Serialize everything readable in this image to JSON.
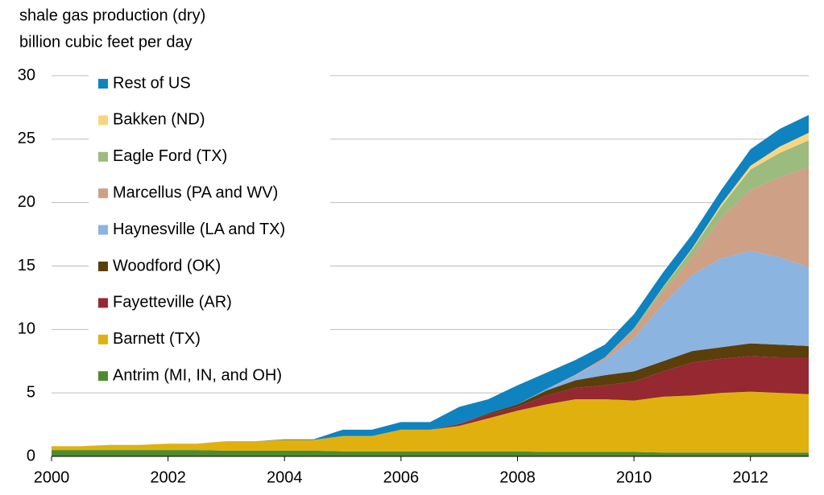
{
  "chart_data": {
    "type": "stacked-area",
    "title": "shale gas production (dry)",
    "subtitle": "billion cubic feet per day",
    "x": [
      2000,
      2000.5,
      2001,
      2001.5,
      2002,
      2002.5,
      2003,
      2003.5,
      2004,
      2004.5,
      2005,
      2005.5,
      2006,
      2006.5,
      2007,
      2007.5,
      2008,
      2008.5,
      2009,
      2009.5,
      2010,
      2010.5,
      2011,
      2011.5,
      2012,
      2012.5,
      2013
    ],
    "xlim": [
      2000,
      2013
    ],
    "xticks": [
      2000,
      2002,
      2004,
      2006,
      2008,
      2010,
      2012
    ],
    "ylim": [
      0,
      30
    ],
    "yticks": [
      0,
      5,
      10,
      15,
      20,
      25,
      30
    ],
    "grid": true,
    "legend": "upper left",
    "series": [
      {
        "name": "Antrim (MI, IN, and OH)",
        "color": "#4e8b2e",
        "values": [
          0.5,
          0.5,
          0.5,
          0.5,
          0.5,
          0.5,
          0.45,
          0.45,
          0.45,
          0.45,
          0.4,
          0.4,
          0.4,
          0.4,
          0.4,
          0.4,
          0.4,
          0.35,
          0.35,
          0.35,
          0.35,
          0.3,
          0.3,
          0.3,
          0.3,
          0.3,
          0.3
        ]
      },
      {
        "name": "Barnett (TX)",
        "color": "#e0b10e",
        "values": [
          0.3,
          0.3,
          0.4,
          0.4,
          0.5,
          0.5,
          0.75,
          0.75,
          0.85,
          0.85,
          1.2,
          1.2,
          1.7,
          1.7,
          2.0,
          2.6,
          3.2,
          3.75,
          4.15,
          4.15,
          4.05,
          4.4,
          4.5,
          4.7,
          4.8,
          4.7,
          4.6
        ]
      },
      {
        "name": "Fayetteville (AR)",
        "color": "#952831",
        "values": [
          0,
          0,
          0,
          0,
          0,
          0,
          0,
          0,
          0,
          0,
          0,
          0,
          0,
          0,
          0.15,
          0.3,
          0.3,
          0.7,
          0.9,
          1.1,
          1.5,
          2.0,
          2.6,
          2.7,
          2.8,
          2.8,
          2.9
        ]
      },
      {
        "name": "Woodford (OK)",
        "color": "#5a3f0a",
        "values": [
          0,
          0,
          0,
          0,
          0,
          0,
          0,
          0,
          0,
          0,
          0,
          0,
          0,
          0,
          0,
          0.1,
          0.2,
          0.4,
          0.6,
          0.8,
          0.8,
          0.8,
          0.9,
          0.9,
          1.0,
          1.0,
          0.9
        ]
      },
      {
        "name": "Haynesville (LA and TX)",
        "color": "#8cb4e0",
        "values": [
          0,
          0,
          0,
          0,
          0,
          0,
          0,
          0,
          0,
          0,
          0,
          0,
          0,
          0,
          0,
          0,
          0,
          0.1,
          0.4,
          1.2,
          2.6,
          4.5,
          6.0,
          7.0,
          7.3,
          6.9,
          6.2
        ]
      },
      {
        "name": "Marcellus (PA and WV)",
        "color": "#cea085",
        "values": [
          0,
          0,
          0,
          0,
          0,
          0,
          0,
          0,
          0,
          0,
          0,
          0,
          0,
          0,
          0,
          0,
          0,
          0,
          0.05,
          0.2,
          0.7,
          1.0,
          1.4,
          3.2,
          4.8,
          6.3,
          7.9
        ]
      },
      {
        "name": "Eagle Ford (TX)",
        "color": "#9bbb7f",
        "values": [
          0,
          0,
          0,
          0,
          0,
          0,
          0,
          0,
          0,
          0,
          0,
          0,
          0,
          0,
          0,
          0,
          0,
          0,
          0,
          0,
          0.1,
          0.3,
          0.6,
          0.9,
          1.6,
          1.9,
          2.1
        ]
      },
      {
        "name": "Bakken (ND)",
        "color": "#fad581",
        "values": [
          0,
          0,
          0,
          0,
          0,
          0,
          0,
          0,
          0,
          0,
          0,
          0,
          0,
          0,
          0,
          0,
          0,
          0,
          0,
          0,
          0,
          0.05,
          0.1,
          0.2,
          0.3,
          0.5,
          0.6
        ]
      },
      {
        "name": "Rest of US",
        "color": "#0f82c0",
        "values": [
          0,
          0,
          0,
          0,
          0,
          0,
          0,
          0,
          0.05,
          0.05,
          0.5,
          0.5,
          0.6,
          0.6,
          1.35,
          1.1,
          1.5,
          1.3,
          1.15,
          1.0,
          1.1,
          1.15,
          1.1,
          1.1,
          1.3,
          1.4,
          1.4
        ]
      }
    ]
  }
}
